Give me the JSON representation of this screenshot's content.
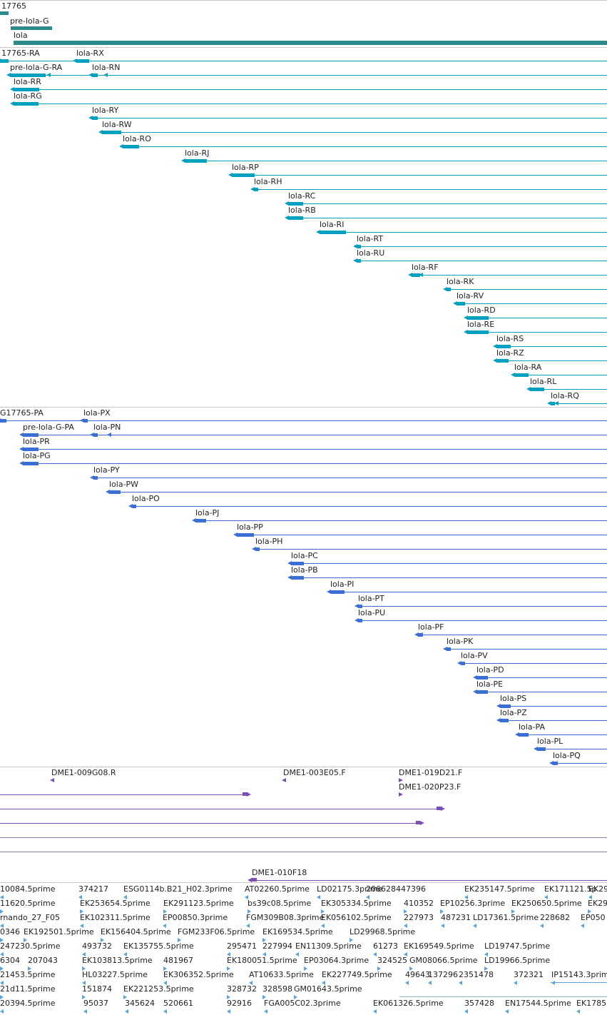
{
  "gene_track": {
    "labels": [
      "17765",
      "pre-lola-G",
      "lola"
    ]
  },
  "rna_track": {
    "color": "#00a0c0",
    "labels": [
      "17765-RA",
      "lola-RX",
      "pre-lola-G-RA",
      "lola-RN",
      "lola-RR",
      "lola-RG",
      "lola-RY",
      "lola-RW",
      "lola-RO",
      "lola-RJ",
      "lola-RP",
      "lola-RH",
      "lola-RC",
      "lola-RB",
      "lola-RI",
      "lola-RT",
      "lola-RU",
      "lola-RF",
      "lola-RK",
      "lola-RV",
      "lola-RD",
      "lola-RE",
      "lola-RS",
      "lola-RZ",
      "lola-RA",
      "lola-RL",
      "lola-RQ"
    ]
  },
  "protein_track": {
    "color": "#3b6fd6",
    "labels": [
      "G17765-PA",
      "lola-PX",
      "pre-lola-G-PA",
      "lola-PN",
      "lola-PR",
      "lola-PG",
      "lola-PY",
      "lola-PW",
      "lola-PO",
      "lola-PJ",
      "lola-PP",
      "lola-PH",
      "lola-PC",
      "lola-PB",
      "lola-PI",
      "lola-PT",
      "lola-PU",
      "lola-PF",
      "lola-PK",
      "lola-PV",
      "lola-PD",
      "lola-PE",
      "lola-PS",
      "lola-PZ",
      "lola-PA",
      "lola-PL",
      "lola-PQ"
    ]
  },
  "insertion_track": {
    "color": "#7a50b8",
    "labels": [
      "DME1-009G08.R",
      "DME1-003E05.F",
      "DME1-019D21.F",
      "DME1-020P23.F",
      "DME1-010F18"
    ]
  },
  "est_track": {
    "color": "#5ba3dc",
    "rows": [
      [
        "10084.5prime",
        "374217",
        "ESG0114b.B21_H02.3prime",
        "AT02260.5prime",
        "LD02175.3prime",
        "206628447396",
        "EK235147.5prime",
        "EK171121.5p",
        "EK29"
      ],
      [
        "11620.5prime",
        "EK253654.5prime",
        "EK291123.5prime",
        "bs39c08.5prime",
        "EK305334.5prime",
        "410352",
        "EP10256.3prime",
        "EK250650.5prime",
        "EK29"
      ],
      [
        "rnando_27_F05",
        "EK102311.5prime",
        "EP00850.3prime",
        "FGM309B08.3prime",
        "EK056102.5prime",
        "227973",
        "487231",
        "LD17361.5prime",
        "228682",
        "EP050"
      ],
      [
        "0346",
        "EK192501.5prime",
        "EK156404.5prime",
        "FGM233F06.5prime",
        "EK169534.5prime",
        "LD29968.5prime"
      ],
      [
        "247230.5prime",
        "493732",
        "EK135755.5prime",
        "295471",
        "227994",
        "EN11309.5prime",
        "61273",
        "EK169549.5prime",
        "LD19747.5prime"
      ],
      [
        "6304",
        "207043",
        "EK103813.5prime",
        "481967",
        "EK180051.5prime",
        "EP03064.3prime",
        "324525",
        "GM08066.5prime",
        "LD19966.5prime"
      ],
      [
        "21453.5prime",
        "HL03227.5prime",
        "EK306352.5prime",
        "AT10633.5prime",
        "EK227749.5prime",
        "49643",
        "137296",
        "2351478",
        "372321",
        "IP15143.3prime"
      ],
      [
        "21d11.5prime",
        "151874",
        "EK221253.5prime",
        "328732",
        "328598",
        "GM01643.5prime"
      ],
      [
        "20394.5prime",
        "95037",
        "345624",
        "520661",
        "92916",
        "FGA005C02.3prime",
        "EK061326.5prime",
        "357428",
        "EN17544.5prime",
        "EK1785"
      ]
    ]
  }
}
